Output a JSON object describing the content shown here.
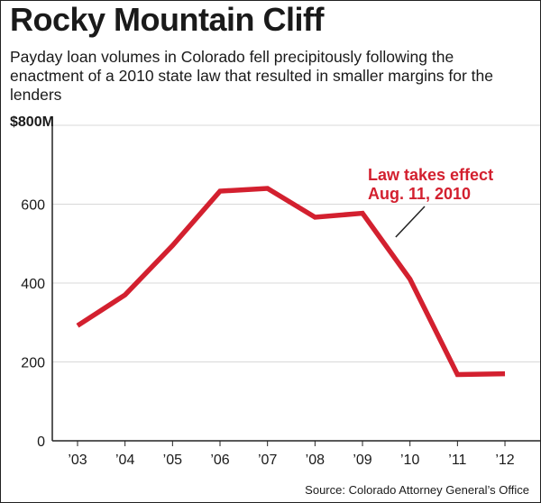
{
  "colors": {
    "line": "#d3202f",
    "annotation": "#d3202f",
    "text": "#1a1a1a",
    "gridline": "#d8d8d8",
    "axis": "#222222"
  },
  "chart_data": {
    "type": "line",
    "title": "Rocky Mountain Cliff",
    "subtitle": "Payday loan volumes in Colorado fell precipitously following the enactment of a 2010 state law that resulted in smaller margins for the lenders",
    "categories": [
      "’03",
      "’04",
      "’05",
      "’06",
      "’07",
      "’08",
      "’09",
      "’10",
      "’11",
      "’12"
    ],
    "series": [
      {
        "name": "Payday loan volume",
        "values": [
          292,
          370,
          495,
          633,
          640,
          567,
          577,
          410,
          168,
          170
        ]
      }
    ],
    "ylim": [
      0,
      800
    ],
    "y_ticks": [
      0,
      200,
      400,
      600,
      800
    ],
    "y_tick_labels": [
      "0",
      "200",
      "400",
      "600",
      "$800M"
    ],
    "xlabel": "",
    "ylabel": "",
    "grid": true,
    "annotation": {
      "line1": "Law takes effect",
      "line2": "Aug. 11, 2010",
      "points_to_x": 2009.7
    },
    "source": "Source: Colorado Attorney General’s Office"
  }
}
